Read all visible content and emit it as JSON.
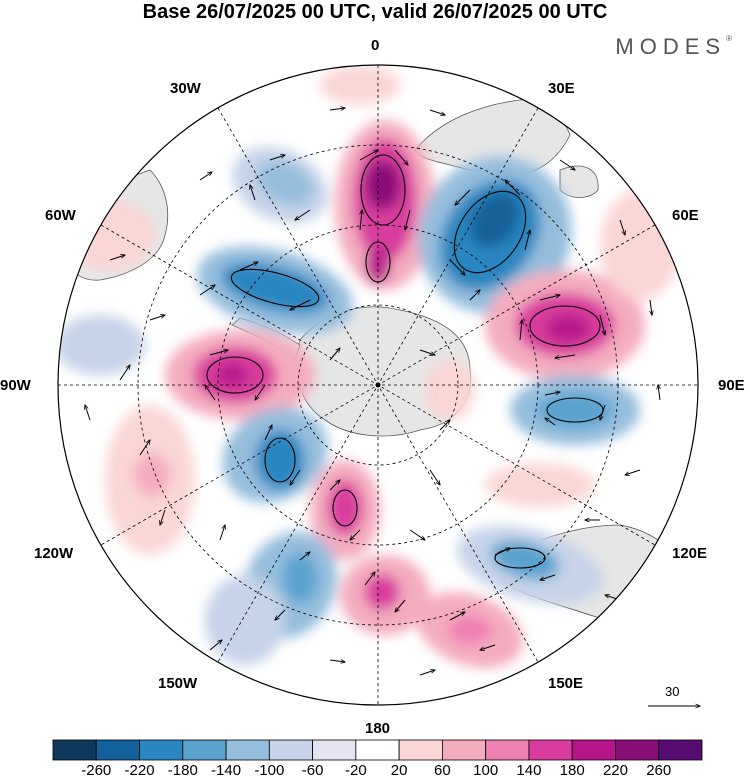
{
  "title": "Base 26/07/2025 00 UTC, valid 26/07/2025 00 UTC",
  "brand": "MODES",
  "brand_mark": "®",
  "map": {
    "projection": "south polar stereographic",
    "longitude_labels": {
      "top": "0",
      "top_left": "30W",
      "top_right": "30E",
      "upper_left": "60W",
      "upper_right": "60E",
      "left": "90W",
      "right": "90E",
      "lower_left": "120W",
      "lower_right": "120E",
      "bottom_left": "150W",
      "bottom_right": "150E",
      "bottom": "180"
    },
    "vector_reference": "30",
    "colors": {
      "land_fill": "#e6e6e6",
      "coast": "#444444",
      "grid": "#000000"
    }
  },
  "colorbar": {
    "labels": [
      "-260",
      "-220",
      "-180",
      "-140",
      "-100",
      "-60",
      "-20",
      "20",
      "60",
      "100",
      "140",
      "180",
      "220",
      "260"
    ],
    "colors": [
      "#0d3a5c",
      "#12619a",
      "#2a86c0",
      "#5aa3cf",
      "#95bedd",
      "#c6d3e8",
      "#e4e4f0",
      "#ffffff",
      "#fad6d6",
      "#f4acbf",
      "#ef80b4",
      "#d93c9e",
      "#b8148a",
      "#8a0e78",
      "#560c73"
    ]
  }
}
